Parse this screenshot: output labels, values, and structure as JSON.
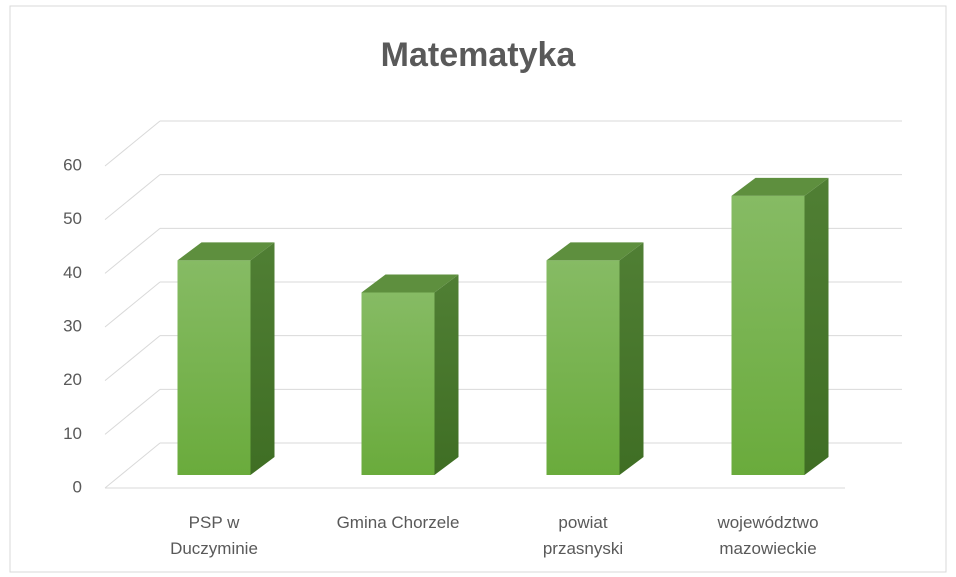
{
  "chart_data": {
    "type": "bar",
    "title": "Matematyka",
    "categories": [
      "PSP w Duczyminie",
      "Gmina Chorzele",
      "powiat przasnyski",
      "województwo mazowieckie"
    ],
    "values": [
      40,
      34,
      40,
      52
    ],
    "color": "#70ad47",
    "ylim": [
      0,
      60
    ],
    "yticks": [
      0,
      10,
      20,
      30,
      40,
      50,
      60
    ],
    "grid": true
  }
}
